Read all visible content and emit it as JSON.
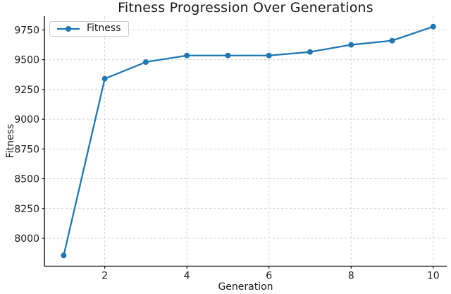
{
  "chart_data": {
    "type": "line",
    "title": "Fitness Progression Over Generations",
    "xlabel": "Generation",
    "ylabel": "Fitness",
    "series": [
      {
        "name": "Fitness",
        "x": [
          1,
          2,
          3,
          4,
          5,
          6,
          7,
          8,
          9,
          10
        ],
        "y": [
          7856,
          9340,
          9480,
          9535,
          9535,
          9535,
          9565,
          9625,
          9660,
          9778
        ],
        "marker": "circle"
      }
    ],
    "x_ticks": [
      2,
      4,
      6,
      8,
      10
    ],
    "y_ticks": [
      8000,
      8250,
      8500,
      8750,
      9000,
      9250,
      9500,
      9750
    ],
    "xlim": [
      0.53,
      10.33
    ],
    "ylim": [
      7766,
      9865
    ],
    "grid": true,
    "grid_style": "dashed",
    "legend": {
      "label": "Fitness",
      "position": "upper left"
    },
    "colors": {
      "line": "#1f77b4",
      "grid": "#cdcdcd",
      "axis": "#000000",
      "text": "#1a1a1a",
      "background": "#ffffff"
    }
  }
}
